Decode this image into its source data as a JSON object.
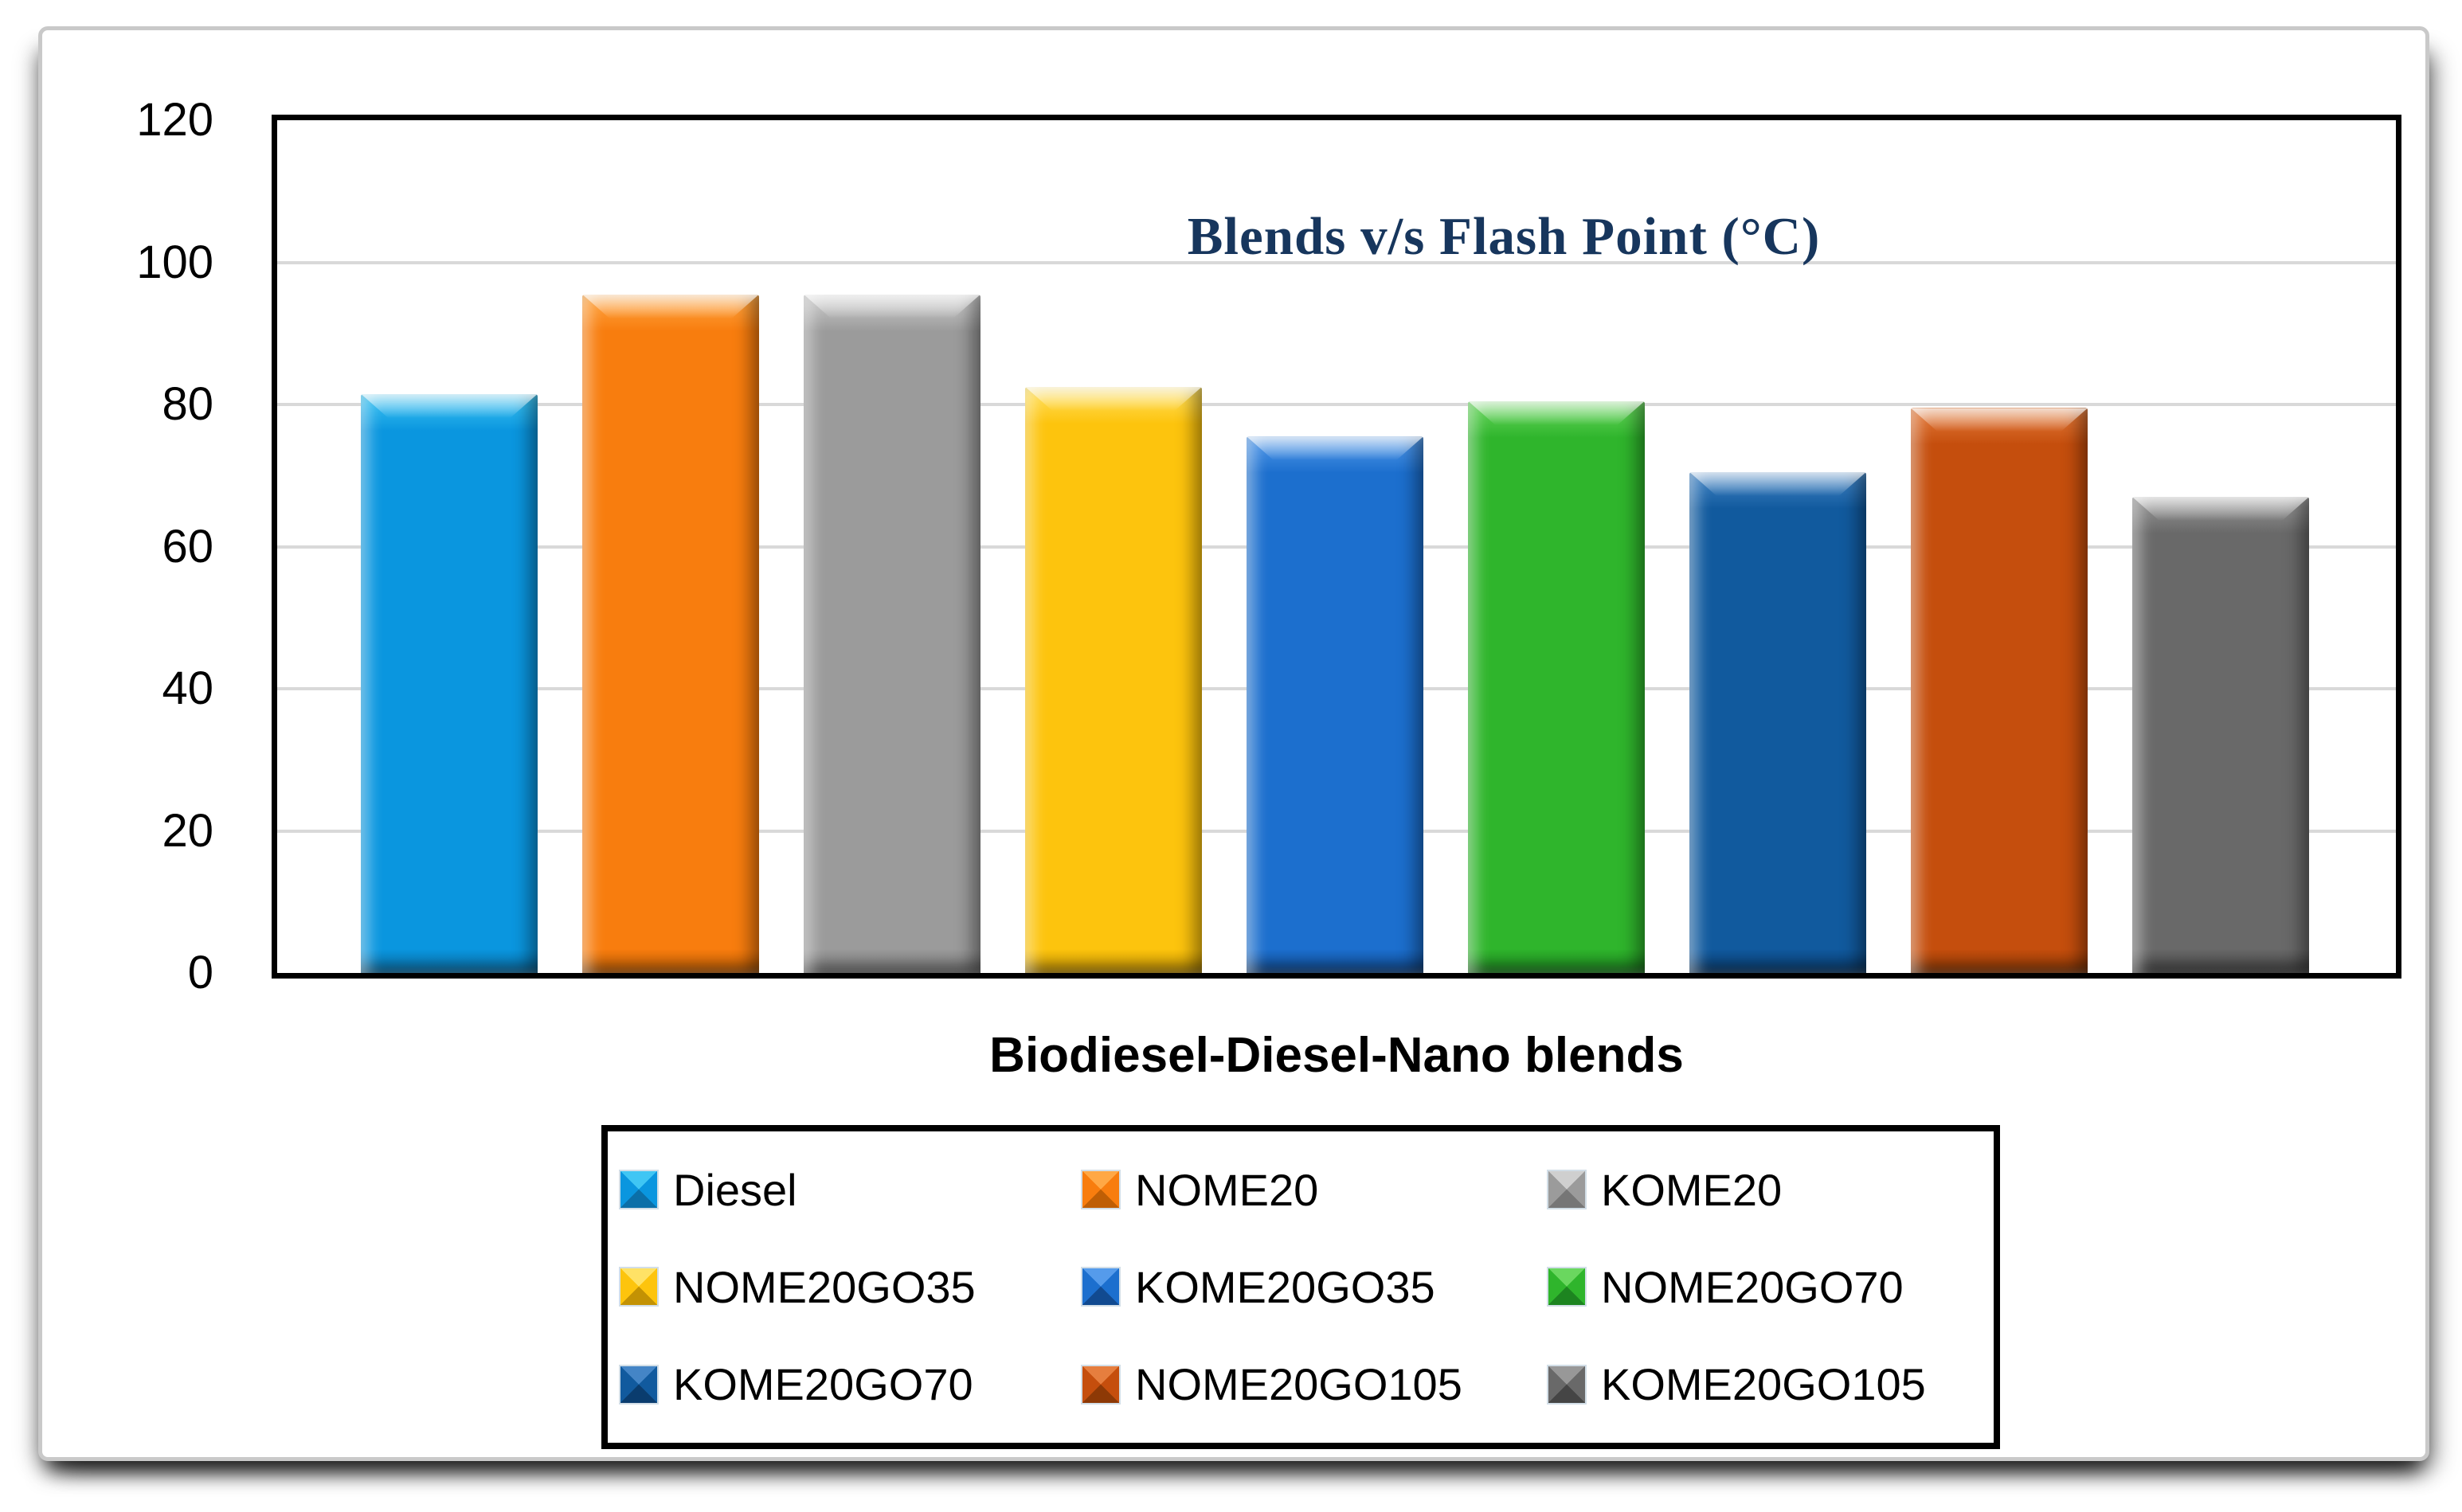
{
  "colors": {
    "title": "#17365D",
    "gridline": "#D9D9D9",
    "plot_border": "#000000",
    "panel_border": "#C9C9C9",
    "legend_border": "#000000",
    "axis_text": "#000000"
  },
  "chart_data": {
    "type": "bar",
    "title": "Blends v/s Flash Point (°C)",
    "xlabel": "Biodiesel-Diesel-Nano blends",
    "ylabel": "",
    "ylim": [
      0,
      120
    ],
    "y_ticks": [
      120,
      100,
      80,
      60,
      40,
      20,
      0
    ],
    "gridlines": [
      100,
      80,
      60,
      40,
      20
    ],
    "grid": "horizontal",
    "legend_position": "below-plot, 3 columns, black border",
    "categories": [
      "Diesel",
      "NOME20",
      "KOME20",
      "NOME20GO35",
      "KOME20GO35",
      "NOME20GO70",
      "KOME20GO70",
      "NOME20GO105",
      "KOME20GO105"
    ],
    "values": [
      81.5,
      95.5,
      95.5,
      82.5,
      75.5,
      80.5,
      70.5,
      79.5,
      67
    ],
    "bar_colors": [
      {
        "fill": "#0A96DF",
        "light": "#3FC6F4",
        "dark": "#0B6FA8"
      },
      {
        "fill": "#F87D0E",
        "light": "#FFA845",
        "dark": "#BF5E05"
      },
      {
        "fill": "#9B9B9B",
        "light": "#CFCFCF",
        "dark": "#767676"
      },
      {
        "fill": "#FDC40D",
        "light": "#FFE266",
        "dark": "#C39204"
      },
      {
        "fill": "#1C6FCE",
        "light": "#559BEB",
        "dark": "#114A90"
      },
      {
        "fill": "#2FB52C",
        "light": "#6AD75F",
        "dark": "#1D8420"
      },
      {
        "fill": "#115A9E",
        "light": "#4485C6",
        "dark": "#0A3C6E"
      },
      {
        "fill": "#C54E0D",
        "light": "#E67E3E",
        "dark": "#8D3906"
      },
      {
        "fill": "#696969",
        "light": "#989898",
        "dark": "#454545"
      }
    ]
  }
}
